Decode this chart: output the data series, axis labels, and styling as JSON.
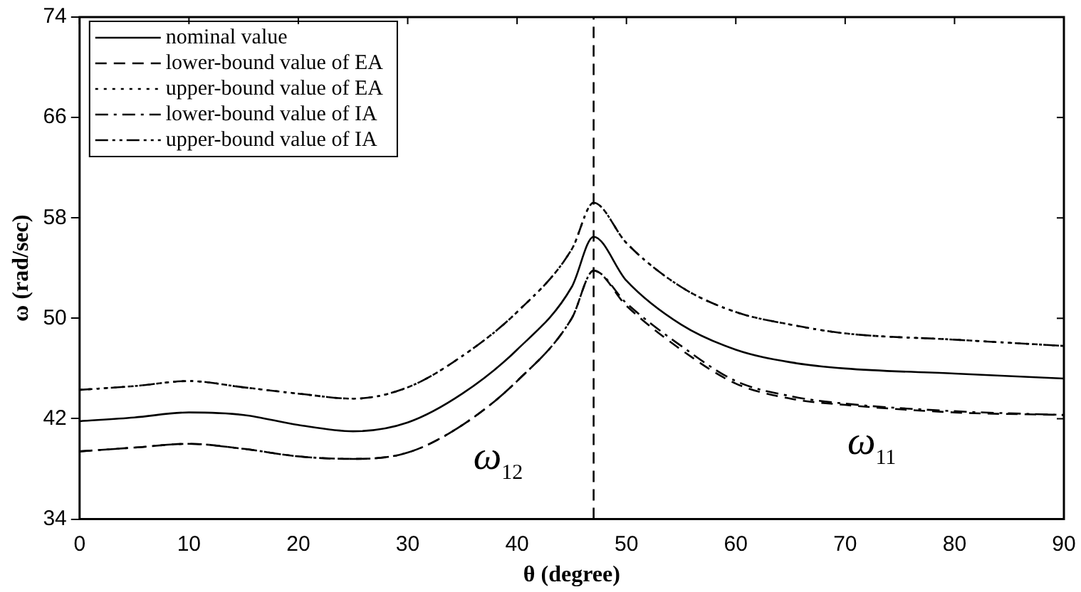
{
  "chart_data": {
    "type": "line",
    "xlabel": "θ (degree)",
    "ylabel": "ω (rad/sec)",
    "x": [
      0,
      5,
      10,
      15,
      20,
      25,
      30,
      35,
      40,
      45,
      47,
      50,
      55,
      60,
      65,
      70,
      80,
      90
    ],
    "xlim": [
      0,
      90
    ],
    "xticks": [
      0,
      10,
      20,
      30,
      40,
      50,
      60,
      70,
      80,
      90
    ],
    "ylim": [
      34,
      74
    ],
    "yticks": [
      34,
      42,
      50,
      58,
      66,
      74
    ],
    "legend": "top left",
    "grid": false,
    "marker": "none",
    "series": [
      {
        "name": "nominal value",
        "color": "#000000",
        "line_style": "solid",
        "values": [
          41.8,
          42.1,
          42.5,
          42.3,
          41.5,
          41.0,
          41.7,
          44.0,
          47.5,
          52.5,
          56.5,
          53.0,
          49.5,
          47.5,
          46.5,
          46.0,
          45.6,
          45.2
        ]
      },
      {
        "name": "lower-bound value of EA",
        "color": "#000000",
        "line_style": "dashed",
        "values": [
          39.4,
          39.7,
          40.0,
          39.6,
          39.0,
          38.8,
          39.3,
          41.5,
          45.0,
          50.0,
          53.8,
          51.0,
          47.5,
          44.8,
          43.6,
          43.1,
          42.5,
          42.3
        ]
      },
      {
        "name": "upper-bound value of EA",
        "color": "#000000",
        "line_style": "dotted",
        "values": [
          44.3,
          44.6,
          45.0,
          44.5,
          44.0,
          43.6,
          44.5,
          47.0,
          50.5,
          55.5,
          59.2,
          56.0,
          52.5,
          50.5,
          49.5,
          48.8,
          48.3,
          47.8
        ]
      },
      {
        "name": "lower-bound value of IA",
        "color": "#000000",
        "line_style": "dashdot",
        "values": [
          39.4,
          39.7,
          40.0,
          39.6,
          39.0,
          38.8,
          39.3,
          41.5,
          45.0,
          50.0,
          53.8,
          51.2,
          47.8,
          45.0,
          43.8,
          43.2,
          42.6,
          42.3
        ]
      },
      {
        "name": "upper-bound value of IA",
        "color": "#000000",
        "line_style": "dashdotdot",
        "values": [
          44.3,
          44.6,
          45.0,
          44.5,
          44.0,
          43.6,
          44.5,
          47.0,
          50.5,
          55.5,
          59.2,
          56.0,
          52.5,
          50.5,
          49.5,
          48.8,
          48.3,
          47.8
        ]
      }
    ],
    "ref_lines": [
      {
        "axis": "x",
        "value": 47,
        "color": "#000000",
        "line_style": "dashed"
      }
    ],
    "annotations": [
      "ω$_{12}$",
      "ω$_{11}$"
    ]
  }
}
